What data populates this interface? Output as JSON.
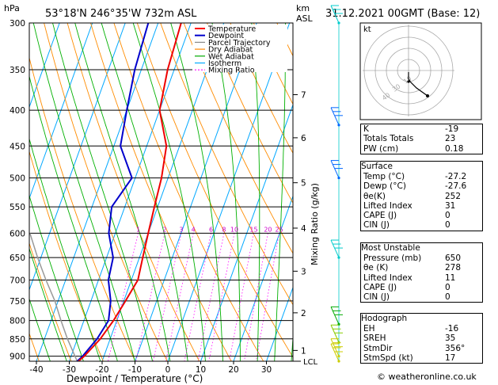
{
  "chart_data": {
    "type": "skew-t",
    "location": "53°18'N  246°35'W  732m  ASL",
    "datetime": "31.12.2021  00GMT  (Base: 12)",
    "left_axis_title": "hPa",
    "right_axis_title": "km\nASL",
    "xlabel": "Dewpoint / Temperature (°C)",
    "mixing_ratio_label": "Mixing Ratio (g/kg)",
    "pressure_ticks": [
      300,
      350,
      400,
      450,
      500,
      550,
      600,
      650,
      700,
      750,
      800,
      850,
      900
    ],
    "temp_ticks": [
      -40,
      -30,
      -20,
      -10,
      0,
      10,
      20,
      30
    ],
    "km_ticks": [
      {
        "label": "7",
        "p": 380
      },
      {
        "label": "6",
        "p": 438
      },
      {
        "label": "5",
        "p": 508
      },
      {
        "label": "4",
        "p": 590
      },
      {
        "label": "3",
        "p": 680
      },
      {
        "label": "2",
        "p": 780
      },
      {
        "label": "1",
        "p": 883
      }
    ],
    "lcl_label": "LCL",
    "lcl_p": 915,
    "mixing_ratio_values": [
      "1",
      "2",
      "3",
      "4",
      "6",
      "8",
      "10",
      "15",
      "20",
      "25"
    ],
    "legend": [
      {
        "name": "Temperature",
        "color": "#ff0000"
      },
      {
        "name": "Dewpoint",
        "color": "#0000cc"
      },
      {
        "name": "Parcel Trajectory",
        "color": "#888888"
      },
      {
        "name": "Dry Adiabat",
        "color": "#ff8800"
      },
      {
        "name": "Wet Adiabat",
        "color": "#00aa00"
      },
      {
        "name": "Isotherm",
        "color": "#00aaff"
      },
      {
        "name": "Mixing Ratio",
        "color": "#ff00ff"
      }
    ],
    "temperature": {
      "p": [
        915,
        900,
        850,
        800,
        750,
        700,
        650,
        600,
        550,
        500,
        450,
        400,
        350,
        300
      ],
      "t": [
        -27.2,
        -26,
        -23,
        -21,
        -19.5,
        -18,
        -19,
        -20,
        -21,
        -22,
        -24,
        -30,
        -32,
        -33
      ]
    },
    "dewpoint": {
      "p": [
        915,
        900,
        850,
        800,
        750,
        700,
        650,
        600,
        550,
        500,
        450,
        400,
        350,
        300
      ],
      "t": [
        -27.6,
        -26.5,
        -24,
        -22.5,
        -24,
        -27,
        -28,
        -32,
        -34,
        -31,
        -38,
        -40,
        -42,
        -43
      ]
    },
    "parcel": {
      "p": [
        915,
        850,
        800,
        750,
        700,
        650,
        600
      ],
      "t": [
        -27.6,
        -33,
        -37,
        -41,
        -46,
        -51,
        -56
      ]
    }
  },
  "hodograph": {
    "label": "kt",
    "ring_labels": [
      "10",
      "30",
      "40"
    ]
  },
  "indices": [
    {
      "label": "K",
      "value": "-19"
    },
    {
      "label": "Totals Totals",
      "value": "23"
    },
    {
      "label": "PW (cm)",
      "value": "0.18"
    }
  ],
  "surface": {
    "title": "Surface",
    "rows": [
      {
        "label": "Temp (°C)",
        "value": "-27.2"
      },
      {
        "label": "Dewp (°C)",
        "value": "-27.6"
      },
      {
        "label": "θe(K)",
        "value": "252"
      },
      {
        "label": "Lifted Index",
        "value": "31"
      },
      {
        "label": "CAPE (J)",
        "value": "0"
      },
      {
        "label": "CIN (J)",
        "value": "0"
      }
    ]
  },
  "most_unstable": {
    "title": "Most Unstable",
    "rows": [
      {
        "label": "Pressure (mb)",
        "value": "650"
      },
      {
        "label": "θe (K)",
        "value": "278"
      },
      {
        "label": "Lifted Index",
        "value": "11"
      },
      {
        "label": "CAPE (J)",
        "value": "0"
      },
      {
        "label": "CIN (J)",
        "value": "0"
      }
    ]
  },
  "hodo_table": {
    "title": "Hodograph",
    "rows": [
      {
        "label": "EH",
        "value": "-16"
      },
      {
        "label": "SREH",
        "value": "35"
      },
      {
        "label": "StmDir",
        "value": "356°"
      },
      {
        "label": "StmSpd (kt)",
        "value": "17"
      }
    ]
  },
  "footer": "© weatheronline.co.uk"
}
